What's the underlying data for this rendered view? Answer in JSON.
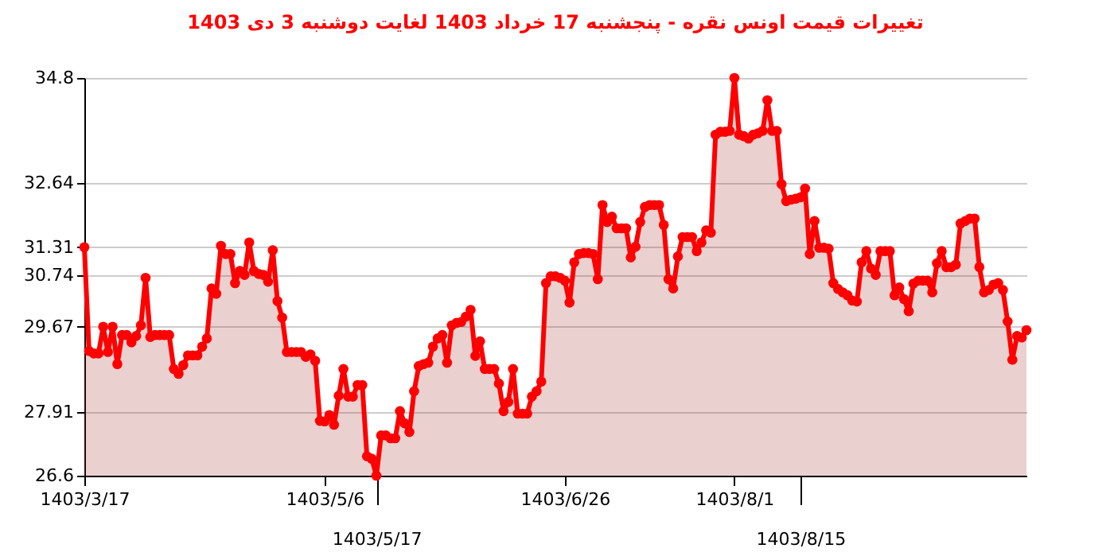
{
  "chart_data": {
    "type": "area",
    "title": "تغییرات قیمت اونس نقره - پنجشنبه  17 خرداد 1403 لغایت  دوشنبه  3 دی 1403",
    "categories": [
      "1403/3/17",
      null,
      null,
      null,
      null,
      null,
      null,
      null,
      null,
      null,
      null,
      null,
      null,
      null,
      null,
      null,
      null,
      null,
      null,
      null,
      null,
      null,
      null,
      null,
      null,
      null,
      null,
      null,
      null,
      null,
      null,
      null,
      null,
      null,
      null,
      null,
      null,
      null,
      null,
      null,
      null,
      null,
      null,
      null,
      null,
      null,
      null,
      null,
      null,
      null,
      null,
      "1403/5/6",
      null,
      null,
      null,
      null,
      null,
      null,
      null,
      null,
      null,
      null,
      "1403/5/17",
      null,
      null,
      null,
      null,
      null,
      null,
      null,
      null,
      null,
      null,
      null,
      null,
      null,
      null,
      null,
      null,
      null,
      null,
      null,
      null,
      null,
      null,
      null,
      null,
      null,
      null,
      null,
      null,
      null,
      null,
      null,
      null,
      null,
      null,
      null,
      null,
      null,
      null,
      null,
      "1403/6/26",
      null,
      null,
      null,
      null,
      null,
      null,
      null,
      null,
      null,
      null,
      null,
      null,
      null,
      null,
      null,
      null,
      null,
      null,
      null,
      null,
      null,
      null,
      null,
      null,
      null,
      null,
      null,
      null,
      null,
      null,
      null,
      null,
      null,
      null,
      null,
      "1403/8/1",
      null,
      null,
      null,
      null,
      null,
      null,
      null,
      null,
      null,
      null,
      null,
      null,
      null,
      "1403/8/15",
      null,
      null,
      null,
      null,
      null,
      null,
      null,
      null,
      null,
      null,
      null,
      null,
      null,
      null,
      null,
      null,
      null,
      null,
      null,
      null,
      null,
      null,
      null,
      null,
      null,
      null,
      null,
      null,
      null,
      null,
      null,
      null,
      null,
      null,
      null,
      null,
      null,
      null,
      null,
      null,
      null,
      null,
      null,
      null,
      null,
      null,
      null,
      null
    ],
    "series": [
      {
        "color": "#ff0000",
        "values": [
          31.31,
          29.17,
          29.12,
          29.12,
          29.67,
          29.15,
          29.67,
          28.9,
          29.5,
          29.5,
          29.35,
          29.48,
          29.7,
          30.68,
          29.46,
          29.5,
          29.5,
          29.5,
          29.5,
          28.8,
          28.7,
          28.88,
          29.08,
          29.08,
          29.08,
          29.26,
          29.43,
          30.46,
          30.35,
          31.34,
          31.17,
          31.17,
          30.57,
          30.82,
          30.74,
          31.41,
          30.82,
          30.76,
          30.74,
          30.6,
          31.25,
          30.2,
          29.86,
          29.15,
          29.15,
          29.15,
          29.15,
          29.05,
          29.1,
          28.97,
          27.73,
          27.72,
          27.85,
          27.65,
          28.25,
          28.8,
          28.23,
          28.23,
          28.47,
          28.47,
          27.0,
          26.95,
          26.6,
          27.43,
          27.43,
          27.37,
          27.37,
          27.93,
          27.68,
          27.5,
          28.34,
          28.86,
          28.9,
          28.93,
          29.26,
          29.43,
          29.5,
          28.93,
          29.7,
          29.75,
          29.77,
          29.88,
          30.02,
          29.07,
          29.37,
          28.8,
          28.8,
          28.8,
          28.5,
          27.93,
          28.12,
          28.8,
          27.88,
          27.88,
          27.88,
          28.23,
          28.34,
          28.54,
          30.57,
          30.71,
          30.71,
          30.68,
          30.62,
          30.17,
          31.0,
          31.17,
          31.19,
          31.19,
          31.17,
          30.65,
          32.18,
          31.83,
          31.94,
          31.7,
          31.7,
          31.7,
          31.1,
          31.32,
          31.83,
          32.14,
          32.18,
          32.18,
          32.18,
          31.77,
          30.65,
          30.46,
          31.12,
          31.52,
          31.52,
          31.52,
          31.23,
          31.41,
          31.66,
          31.61,
          33.63,
          33.69,
          33.69,
          33.71,
          34.8,
          33.63,
          33.6,
          33.55,
          33.63,
          33.66,
          33.71,
          34.34,
          33.71,
          33.71,
          32.61,
          32.26,
          32.29,
          32.31,
          32.34,
          32.52,
          31.17,
          31.85,
          31.3,
          31.3,
          31.28,
          30.57,
          30.45,
          30.38,
          30.32,
          30.21,
          30.19,
          31.0,
          31.23,
          30.87,
          30.74,
          31.23,
          31.23,
          31.23,
          30.32,
          30.48,
          30.24,
          29.99,
          30.56,
          30.62,
          30.62,
          30.62,
          30.38,
          30.98,
          31.23,
          30.9,
          30.9,
          30.95,
          31.8,
          31.85,
          31.9,
          31.9,
          30.9,
          30.38,
          30.43,
          30.54,
          30.57,
          30.43,
          29.78,
          28.99,
          29.48,
          29.45,
          29.6
        ]
      }
    ],
    "ylim": [
      26.6,
      34.8
    ],
    "yticks": [
      26.6,
      27.91,
      29.67,
      30.74,
      31.31,
      32.64,
      34.8
    ],
    "grid": "y",
    "marker": "circle",
    "line_style": "solid"
  }
}
